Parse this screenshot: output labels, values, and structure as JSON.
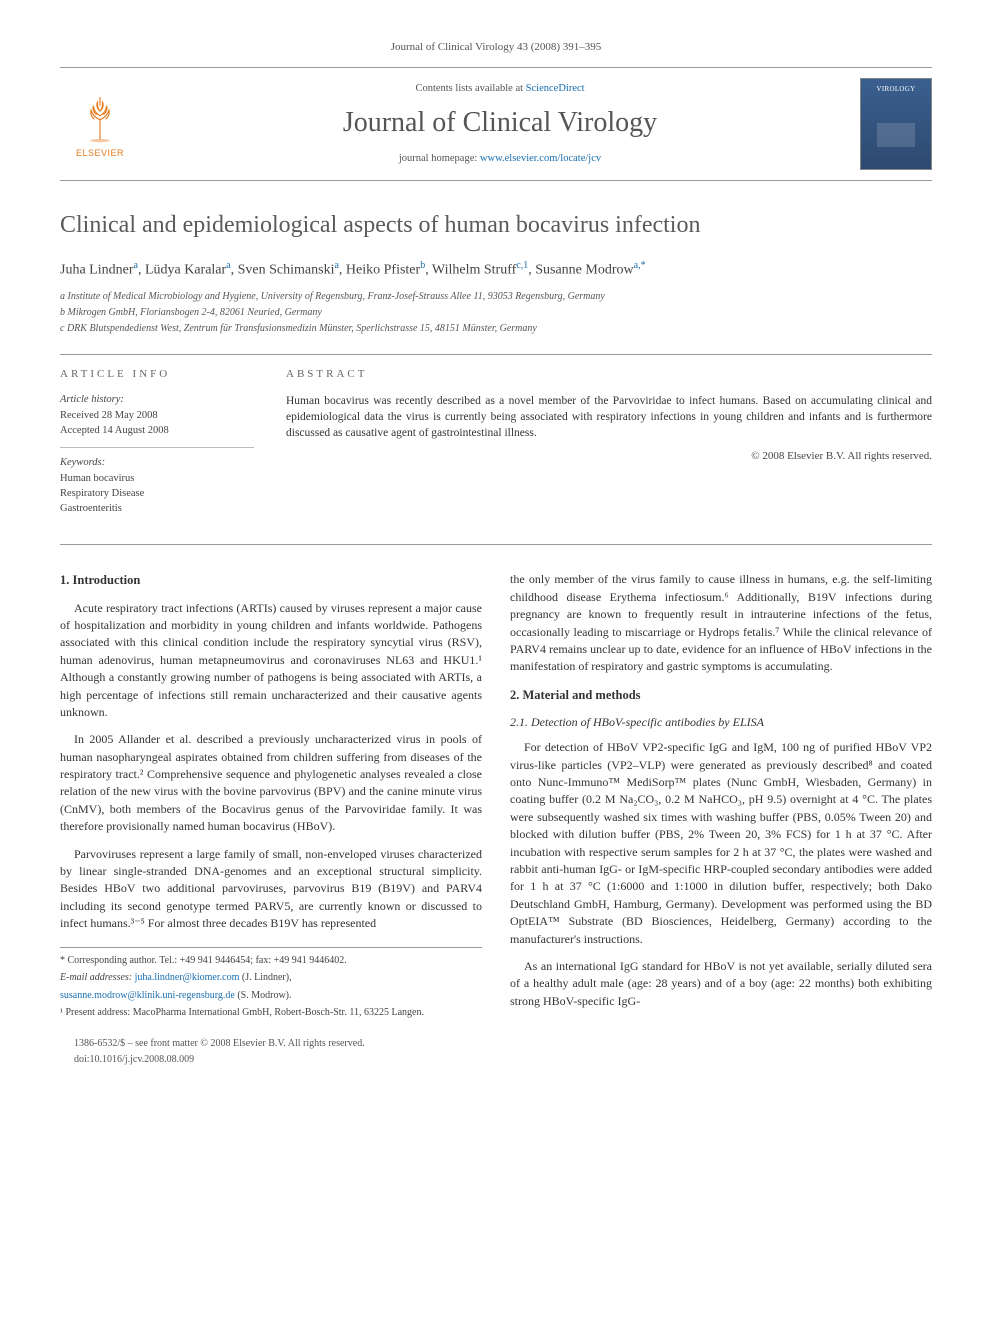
{
  "running_head": "Journal of Clinical Virology 43 (2008) 391–395",
  "masthead": {
    "publisher_name": "ELSEVIER",
    "contents_prefix": "Contents lists available at ",
    "contents_link": "ScienceDirect",
    "journal_name": "Journal of Clinical Virology",
    "homepage_prefix": "journal homepage: ",
    "homepage_url": "www.elsevier.com/locate/jcv",
    "cover_thumb_text": "VIROLOGY"
  },
  "article": {
    "title": "Clinical and epidemiological aspects of human bocavirus infection",
    "authors_html": "Juha Lindner<sup>a</sup>, Lüdya Karalar<sup>a</sup>, Sven Schimanski<sup>a</sup>, Heiko Pfister<sup>b</sup>, Wilhelm Struff<sup>c,1</sup>, Susanne Modrow<sup>a,*</sup>",
    "affiliations": [
      "a Institute of Medical Microbiology and Hygiene, University of Regensburg, Franz-Josef-Strauss Allee 11, 93053 Regensburg, Germany",
      "b Mikrogen GmbH, Floriansbogen 2-4, 82061 Neuried, Germany",
      "c DRK Blutspendedienst West, Zentrum für Transfusionsmedizin Münster, Sperlichstrasse 15, 48151 Münster, Germany"
    ]
  },
  "info": {
    "heading": "ARTICLE INFO",
    "history_label": "Article history:",
    "received": "Received 28 May 2008",
    "accepted": "Accepted 14 August 2008",
    "keywords_label": "Keywords:",
    "keywords": [
      "Human bocavirus",
      "Respiratory Disease",
      "Gastroenteritis"
    ]
  },
  "abstract": {
    "heading": "ABSTRACT",
    "text": "Human bocavirus was recently described as a novel member of the Parvoviridae to infect humans. Based on accumulating clinical and epidemiological data the virus is currently being associated with respiratory infections in young children and infants and is furthermore discussed as causative agent of gastrointestinal illness.",
    "copyright": "© 2008 Elsevier B.V. All rights reserved."
  },
  "body": {
    "left": {
      "h1": "1. Introduction",
      "p1": "Acute respiratory tract infections (ARTIs) caused by viruses represent a major cause of hospitalization and morbidity in young children and infants worldwide. Pathogens associated with this clinical condition include the respiratory syncytial virus (RSV), human adenovirus, human metapneumovirus and coronaviruses NL63 and HKU1.¹ Although a constantly growing number of pathogens is being associated with ARTIs, a high percentage of infections still remain uncharacterized and their causative agents unknown.",
      "p2": "In 2005 Allander et al. described a previously uncharacterized virus in pools of human nasopharyngeal aspirates obtained from children suffering from diseases of the respiratory tract.² Comprehensive sequence and phylogenetic analyses revealed a close relation of the new virus with the bovine parvovirus (BPV) and the canine minute virus (CnMV), both members of the Bocavirus genus of the Parvoviridae family. It was therefore provisionally named human bocavirus (HBoV).",
      "p3": "Parvoviruses represent a large family of small, non-enveloped viruses characterized by linear single-stranded DNA-genomes and an exceptional structural simplicity. Besides HBoV two additional parvoviruses, parvovirus B19 (B19V) and PARV4 including its second genotype termed PARV5, are currently known or discussed to infect humans.³⁻⁵ For almost three decades B19V has represented"
    },
    "right": {
      "p0": "the only member of the virus family to cause illness in humans, e.g. the self-limiting childhood disease Erythema infectiosum.⁶ Additionally, B19V infections during pregnancy are known to frequently result in intrauterine infections of the fetus, occasionally leading to miscarriage or Hydrops fetalis.⁷ While the clinical relevance of PARV4 remains unclear up to date, evidence for an influence of HBoV infections in the manifestation of respiratory and gastric symptoms is accumulating.",
      "h2": "2. Material and methods",
      "h2_1": "2.1. Detection of HBoV-specific antibodies by ELISA",
      "p1": "For detection of HBoV VP2-specific IgG and IgM, 100 ng of purified HBoV VP2 virus-like particles (VP2–VLP) were generated as previously described⁸ and coated onto Nunc-Immuno™ MediSorp™ plates (Nunc GmbH, Wiesbaden, Germany) in coating buffer (0.2 M Na₂CO₃, 0.2 M NaHCO₃, pH 9.5) overnight at 4 °C. The plates were subsequently washed six times with washing buffer (PBS, 0.05% Tween 20) and blocked with dilution buffer (PBS, 2% Tween 20, 3% FCS) for 1 h at 37 °C. After incubation with respective serum samples for 2 h at 37 °C, the plates were washed and rabbit anti-human IgG- or IgM-specific HRP-coupled secondary antibodies were added for 1 h at 37 °C (1:6000 and 1:1000 in dilution buffer, respectively; both Dako Deutschland GmbH, Hamburg, Germany). Development was performed using the BD OptEIA™ Substrate (BD Biosciences, Heidelberg, Germany) according to the manufacturer's instructions.",
      "p2": "As an international IgG standard for HBoV is not yet available, serially diluted sera of a healthy adult male (age: 28 years) and of a boy (age: 22 months) both exhibiting strong HBoV-specific IgG-"
    }
  },
  "footnotes": {
    "corr": "* Corresponding author. Tel.: +49 941 9446454; fax: +49 941 9446402.",
    "email_label": "E-mail addresses:",
    "email1": "juha.lindner@kiomer.com",
    "email1_who": " (J. Lindner),",
    "email2": "susanne.modrow@klinik.uni-regensburg.de",
    "email2_who": " (S. Modrow).",
    "note1": "¹ Present address: MacoPharma International GmbH, Robert-Bosch-Str. 11, 63225 Langen."
  },
  "footer": {
    "line1": "1386-6532/$ – see front matter © 2008 Elsevier B.V. All rights reserved.",
    "line2": "doi:10.1016/j.jcv.2008.08.009"
  },
  "colors": {
    "link": "#1a6fb0",
    "publisher": "#e57b1e",
    "text": "#333333",
    "muted": "#555555",
    "rule": "#999999"
  }
}
